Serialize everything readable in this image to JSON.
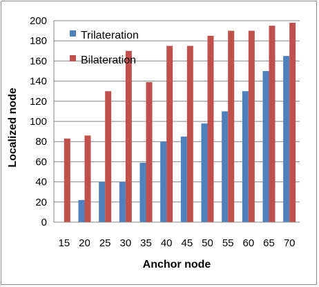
{
  "chart_data": {
    "type": "bar",
    "xlabel": "Anchor node",
    "ylabel": "Localized node",
    "ylim": [
      0,
      200
    ],
    "yticks": [
      0,
      20,
      40,
      60,
      80,
      100,
      120,
      140,
      160,
      180,
      200
    ],
    "grid": "horizontal",
    "legend_position": "top-left inside plot",
    "categories": [
      "15",
      "20",
      "25",
      "30",
      "35",
      "40",
      "45",
      "50",
      "55",
      "60",
      "65",
      "70"
    ],
    "series": [
      {
        "name": "Trilateration",
        "color": "#4f81bd",
        "values": [
          0,
          22,
          40,
          40,
          59,
          80,
          85,
          98,
          110,
          130,
          150,
          165
        ]
      },
      {
        "name": "Bilateration",
        "color": "#c0504d",
        "values": [
          83,
          86,
          130,
          170,
          139,
          175,
          175,
          185,
          190,
          190,
          195,
          198
        ]
      }
    ]
  }
}
